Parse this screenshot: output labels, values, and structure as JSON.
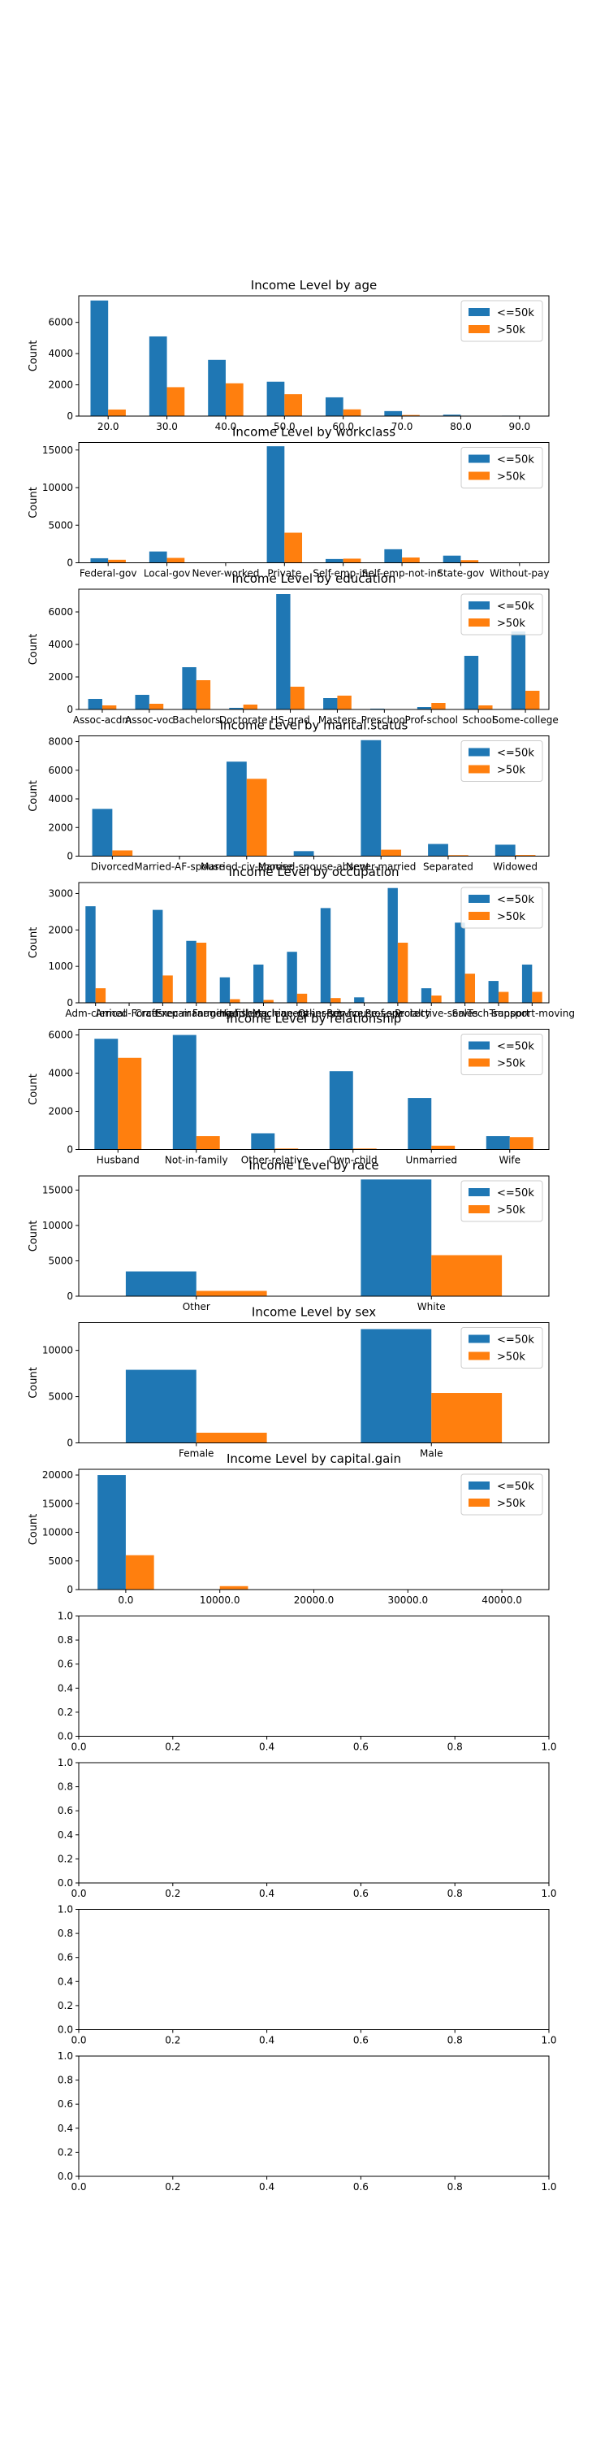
{
  "legend_labels": [
    "<=50k",
    ">50k"
  ],
  "colors": {
    "le50k": "#1f77b4",
    "gt50k": "#ff7f0e"
  },
  "ylabel": "Count",
  "chart_data": [
    {
      "type": "bar",
      "title": "Income Level by age",
      "ylabel": "Count",
      "ylim": [
        0,
        7700
      ],
      "yticks": [
        0,
        2000,
        4000,
        6000
      ],
      "categories": [
        "20.0",
        "30.0",
        "40.0",
        "50.0",
        "60.0",
        "70.0",
        "80.0",
        "90.0"
      ],
      "series": [
        {
          "name": "<=50k",
          "values": [
            7400,
            5100,
            3600,
            2200,
            1200,
            320,
            90,
            30
          ]
        },
        {
          "name": ">50k",
          "values": [
            420,
            1850,
            2100,
            1400,
            430,
            70,
            15,
            5
          ]
        }
      ],
      "legend": "top-right"
    },
    {
      "type": "bar",
      "title": "Income Level by workclass",
      "ylabel": "Count",
      "ylim": [
        0,
        16000
      ],
      "yticks": [
        0,
        5000,
        10000,
        15000
      ],
      "categories": [
        "Federal-gov",
        "Local-gov",
        "Never-worked",
        "Private",
        "Self-emp-inc",
        "Self-emp-not-inc",
        "State-gov",
        "Without-pay"
      ],
      "series": [
        {
          "name": "<=50k",
          "values": [
            600,
            1500,
            10,
            15500,
            500,
            1800,
            950,
            15
          ]
        },
        {
          "name": ">50k",
          "values": [
            400,
            650,
            0,
            4000,
            550,
            700,
            350,
            0
          ]
        }
      ],
      "legend": "top-right"
    },
    {
      "type": "bar",
      "title": "Income Level by education",
      "ylabel": "Count",
      "ylim": [
        0,
        7400
      ],
      "yticks": [
        0,
        2000,
        4000,
        6000
      ],
      "categories": [
        "Assoc-acdm",
        "Assoc-voc",
        "Bachelors",
        "Doctorate",
        "HS-grad",
        "Masters",
        "Preschool",
        "Prof-school",
        "School",
        "Some-college"
      ],
      "series": [
        {
          "name": "<=50k",
          "values": [
            650,
            900,
            2600,
            100,
            7100,
            700,
            50,
            150,
            3300,
            4800
          ]
        },
        {
          "name": ">50k",
          "values": [
            250,
            350,
            1800,
            300,
            1400,
            850,
            0,
            400,
            250,
            1150
          ]
        }
      ],
      "legend": "top-right"
    },
    {
      "type": "bar",
      "title": "Income Level by marital.status",
      "ylabel": "Count",
      "ylim": [
        0,
        8400
      ],
      "yticks": [
        0,
        2000,
        4000,
        6000,
        8000
      ],
      "categories": [
        "Divorced",
        "Married-AF-spouse",
        "Married-civ-spouse",
        "Married-spouse-absent",
        "Never-married",
        "Separated",
        "Widowed"
      ],
      "series": [
        {
          "name": "<=50k",
          "values": [
            3300,
            15,
            6600,
            350,
            8100,
            850,
            800
          ]
        },
        {
          "name": ">50k",
          "values": [
            400,
            10,
            5400,
            30,
            450,
            70,
            80
          ]
        }
      ],
      "legend": "top-right"
    },
    {
      "type": "bar",
      "title": "Income Level by occupation",
      "ylabel": "Count",
      "ylim": [
        0,
        3300
      ],
      "yticks": [
        0,
        1000,
        2000,
        3000
      ],
      "categories": [
        "Adm-clerical",
        "Armed-Forces",
        "Craft-repair",
        "Exec-managerial",
        "Farming-fishing",
        "Handlers-cleaners",
        "Machine-op-inspct",
        "Other-service",
        "Priv-house-serv",
        "Prof-specialty",
        "Protective-serv",
        "Sales",
        "Tech-support",
        "Transport-moving"
      ],
      "series": [
        {
          "name": "<=50k",
          "values": [
            2650,
            10,
            2550,
            1700,
            700,
            1050,
            1400,
            2600,
            150,
            3150,
            400,
            2200,
            600,
            1050
          ]
        },
        {
          "name": ">50k",
          "values": [
            400,
            0,
            750,
            1650,
            100,
            80,
            250,
            130,
            5,
            1650,
            200,
            800,
            300,
            300
          ]
        }
      ],
      "legend": "top-right"
    },
    {
      "type": "bar",
      "title": "Income Level by relationship",
      "ylabel": "Count",
      "ylim": [
        0,
        6300
      ],
      "yticks": [
        0,
        2000,
        4000,
        6000
      ],
      "categories": [
        "Husband",
        "Not-in-family",
        "Other-relative",
        "Own-child",
        "Unmarried",
        "Wife"
      ],
      "series": [
        {
          "name": "<=50k",
          "values": [
            5800,
            6000,
            850,
            4100,
            2700,
            700
          ]
        },
        {
          "name": ">50k",
          "values": [
            4800,
            700,
            50,
            50,
            200,
            650
          ]
        }
      ],
      "legend": "top-right"
    },
    {
      "type": "bar",
      "title": "Income Level by race",
      "ylabel": "Count",
      "ylim": [
        0,
        17000
      ],
      "yticks": [
        0,
        5000,
        10000,
        15000
      ],
      "categories": [
        "Other",
        "White"
      ],
      "series": [
        {
          "name": "<=50k",
          "values": [
            3500,
            16500
          ]
        },
        {
          "name": ">50k",
          "values": [
            750,
            5800
          ]
        }
      ],
      "legend": "top-right"
    },
    {
      "type": "bar",
      "title": "Income Level by sex",
      "ylabel": "Count",
      "ylim": [
        0,
        13000
      ],
      "yticks": [
        0,
        5000,
        10000
      ],
      "categories": [
        "Female",
        "Male"
      ],
      "series": [
        {
          "name": "<=50k",
          "values": [
            7900,
            12300
          ]
        },
        {
          "name": ">50k",
          "values": [
            1100,
            5400
          ]
        }
      ],
      "legend": "top-right"
    },
    {
      "type": "bar",
      "title": "Income Level by capital.gain",
      "ylabel": "Count",
      "ylim": [
        0,
        21000
      ],
      "yticks": [
        0,
        5000,
        10000,
        15000,
        20000
      ],
      "categories": [
        "0.0",
        "10000.0",
        "20000.0",
        "30000.0",
        "40000.0"
      ],
      "series": [
        {
          "name": "<=50k",
          "values": [
            20000,
            5,
            0,
            0,
            0
          ]
        },
        {
          "name": ">50k",
          "values": [
            6000,
            600,
            5,
            0,
            0
          ]
        }
      ],
      "legend": "top-right"
    },
    {
      "type": "empty",
      "xlim": [
        0,
        1
      ],
      "ylim": [
        0,
        1
      ],
      "ticks": [
        "0.0",
        "0.2",
        "0.4",
        "0.6",
        "0.8",
        "1.0"
      ]
    },
    {
      "type": "empty",
      "xlim": [
        0,
        1
      ],
      "ylim": [
        0,
        1
      ],
      "ticks": [
        "0.0",
        "0.2",
        "0.4",
        "0.6",
        "0.8",
        "1.0"
      ]
    },
    {
      "type": "empty",
      "xlim": [
        0,
        1
      ],
      "ylim": [
        0,
        1
      ],
      "ticks": [
        "0.0",
        "0.2",
        "0.4",
        "0.6",
        "0.8",
        "1.0"
      ]
    },
    {
      "type": "empty",
      "xlim": [
        0,
        1
      ],
      "ylim": [
        0,
        1
      ],
      "ticks": [
        "0.0",
        "0.2",
        "0.4",
        "0.6",
        "0.8",
        "1.0"
      ]
    }
  ]
}
